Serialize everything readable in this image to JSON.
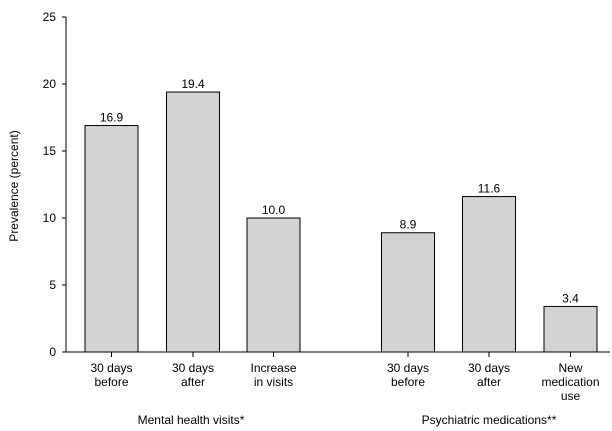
{
  "chart_data": {
    "type": "bar",
    "title": "",
    "xlabel": "",
    "ylabel": "Prevalence (percent)",
    "ylim": [
      0,
      25
    ],
    "yticks": [
      0,
      5,
      10,
      15,
      20,
      25
    ],
    "grid": false,
    "legend": "none",
    "bar_color": "#d3d3d3",
    "bar_edge_color": "#000000",
    "groups": [
      {
        "name": "Mental health visits*",
        "categories": [
          [
            "30 days",
            "before"
          ],
          [
            "30 days",
            "after"
          ],
          [
            "Increase",
            "in visits"
          ]
        ],
        "values": [
          16.9,
          19.4,
          10.0
        ],
        "value_labels": [
          "16.9",
          "19.4",
          "10.0"
        ]
      },
      {
        "name": "Psychiatric medications**",
        "categories": [
          [
            "30 days",
            "before"
          ],
          [
            "30 days",
            "after"
          ],
          [
            "New",
            "medication",
            "use"
          ]
        ],
        "values": [
          8.9,
          11.6,
          3.4
        ],
        "value_labels": [
          "8.9",
          "11.6",
          "3.4"
        ]
      }
    ]
  }
}
